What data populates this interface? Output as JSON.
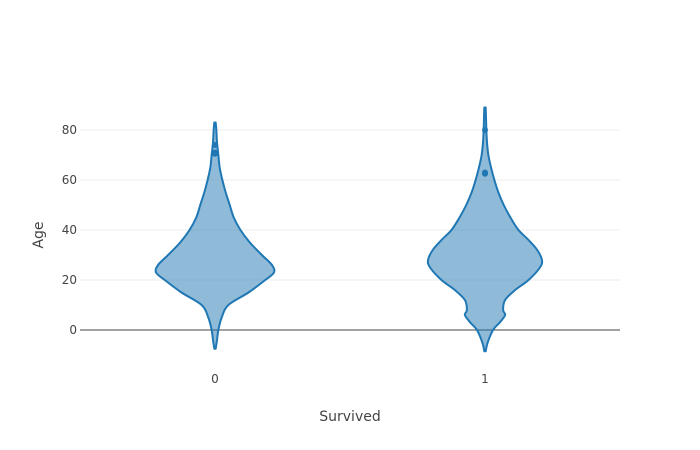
{
  "chart_data": {
    "type": "violin",
    "title": "",
    "xlabel": "Survived",
    "ylabel": "Age",
    "categories": [
      "0",
      "1"
    ],
    "ylim": [
      -12,
      92
    ],
    "yticks": [
      0,
      20,
      40,
      60,
      80
    ],
    "grid": true,
    "zero_line": true,
    "colors": {
      "line": "#1f77b4",
      "fill": "#1f77b4",
      "fill_opacity": 0.5,
      "grid": "#eeeeee",
      "zero_line": "#444444",
      "text": "#444444"
    },
    "series": [
      {
        "category": "0",
        "range": [
          -7.5,
          83
        ],
        "density": [
          {
            "y": -7.5,
            "w": 1
          },
          {
            "y": -4,
            "w": 3
          },
          {
            "y": 0,
            "w": 5
          },
          {
            "y": 5,
            "w": 10
          },
          {
            "y": 10,
            "w": 20
          },
          {
            "y": 15,
            "w": 50
          },
          {
            "y": 20,
            "w": 75
          },
          {
            "y": 23,
            "w": 88
          },
          {
            "y": 26,
            "w": 85
          },
          {
            "y": 30,
            "w": 70
          },
          {
            "y": 35,
            "w": 52
          },
          {
            "y": 40,
            "w": 38
          },
          {
            "y": 45,
            "w": 28
          },
          {
            "y": 50,
            "w": 22
          },
          {
            "y": 55,
            "w": 16
          },
          {
            "y": 60,
            "w": 11
          },
          {
            "y": 65,
            "w": 7
          },
          {
            "y": 70,
            "w": 5
          },
          {
            "y": 75,
            "w": 3
          },
          {
            "y": 80,
            "w": 2
          },
          {
            "y": 83,
            "w": 1
          }
        ],
        "outliers": [
          71,
          70.5,
          74
        ]
      },
      {
        "category": "1",
        "range": [
          -8.5,
          89
        ],
        "density": [
          {
            "y": -8.5,
            "w": 1
          },
          {
            "y": -5,
            "w": 4
          },
          {
            "y": 0,
            "w": 12
          },
          {
            "y": 3,
            "w": 22
          },
          {
            "y": 6,
            "w": 30
          },
          {
            "y": 8,
            "w": 27
          },
          {
            "y": 12,
            "w": 30
          },
          {
            "y": 16,
            "w": 45
          },
          {
            "y": 20,
            "w": 65
          },
          {
            "y": 25,
            "w": 82
          },
          {
            "y": 28,
            "w": 85
          },
          {
            "y": 32,
            "w": 78
          },
          {
            "y": 36,
            "w": 65
          },
          {
            "y": 40,
            "w": 50
          },
          {
            "y": 45,
            "w": 38
          },
          {
            "y": 50,
            "w": 28
          },
          {
            "y": 55,
            "w": 20
          },
          {
            "y": 60,
            "w": 14
          },
          {
            "y": 65,
            "w": 9
          },
          {
            "y": 70,
            "w": 5
          },
          {
            "y": 75,
            "w": 3
          },
          {
            "y": 80,
            "w": 2
          },
          {
            "y": 85,
            "w": 1.5
          },
          {
            "y": 89,
            "w": 1
          }
        ],
        "outliers": [
          80,
          62.5,
          63
        ]
      }
    ]
  }
}
